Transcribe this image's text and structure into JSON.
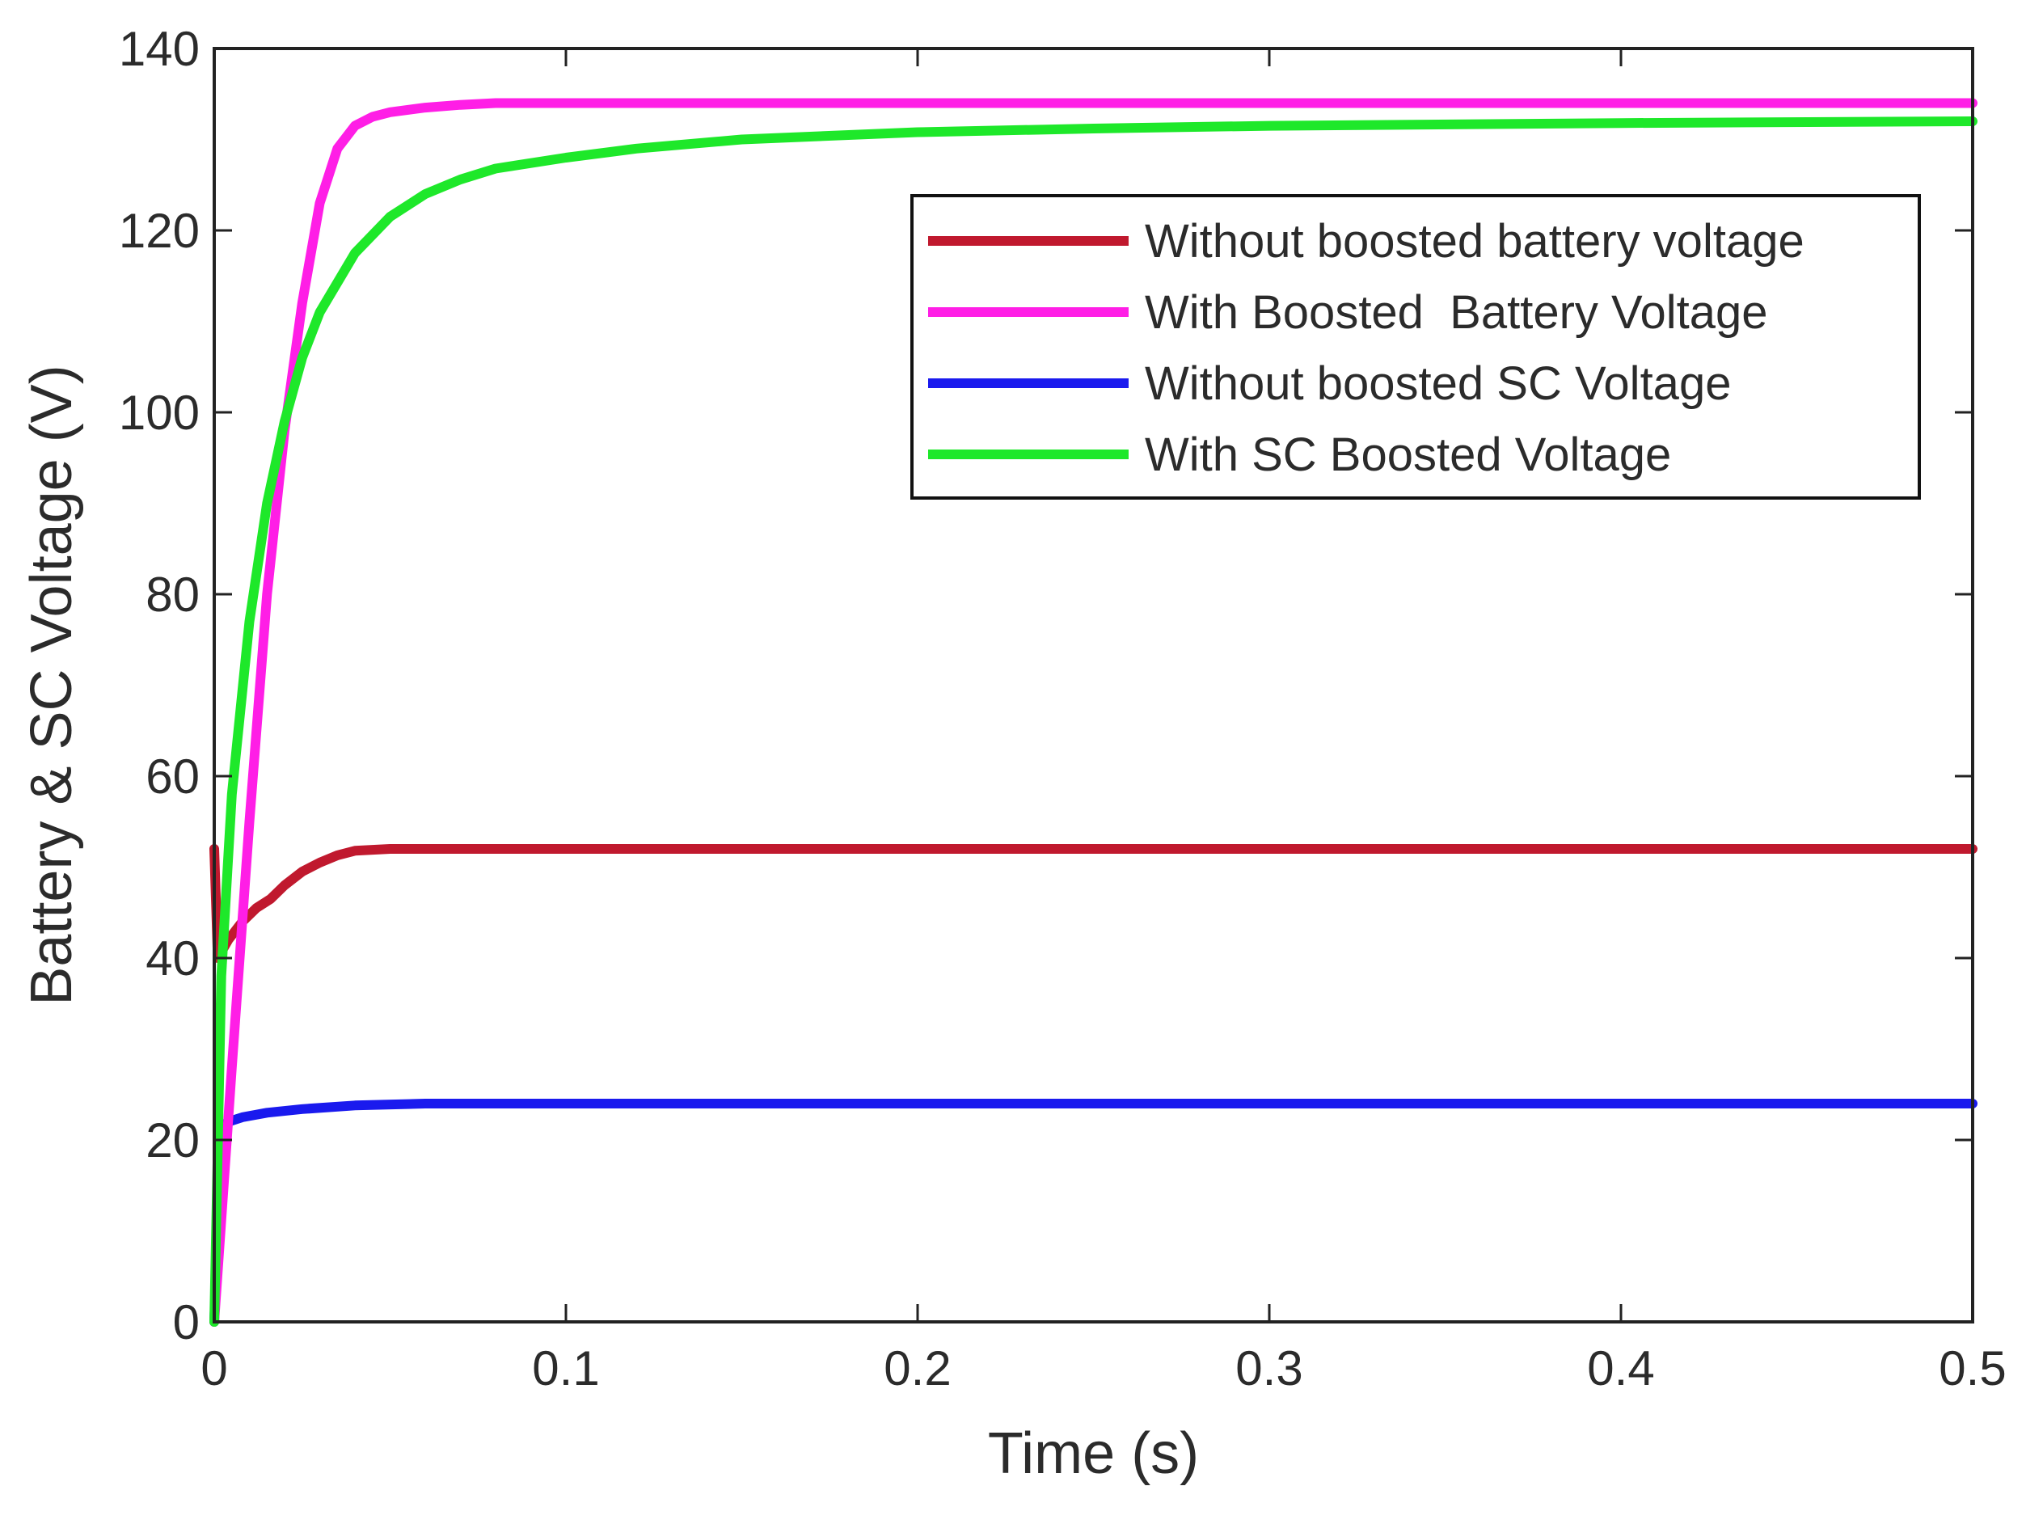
{
  "chart_data": {
    "type": "line",
    "xlabel": "Time (s)",
    "ylabel": "Battery & SC Voltage (V)",
    "xlim": [
      0,
      0.5
    ],
    "ylim": [
      0,
      140
    ],
    "xticks": [
      0,
      0.1,
      0.2,
      0.3,
      0.4,
      0.5
    ],
    "xtick_labels": [
      "0",
      "0.1",
      "0.2",
      "0.3",
      "0.4",
      "0.5"
    ],
    "yticks": [
      0,
      20,
      40,
      60,
      80,
      100,
      120,
      140
    ],
    "ytick_labels": [
      "0",
      "20",
      "40",
      "60",
      "80",
      "100",
      "120",
      "140"
    ],
    "grid": false,
    "legend_position": "top-right",
    "series": [
      {
        "name": "Without boosted battery voltage",
        "color": "#c0192e",
        "x": [
          0,
          0.001,
          0.004,
          0.008,
          0.012,
          0.016,
          0.02,
          0.025,
          0.03,
          0.035,
          0.04,
          0.05,
          0.06,
          0.1,
          0.2,
          0.3,
          0.4,
          0.5
        ],
        "y": [
          52,
          40,
          42,
          44,
          45.5,
          46.5,
          48,
          49.5,
          50.5,
          51.3,
          51.8,
          52,
          52,
          52,
          52,
          52,
          52,
          52
        ]
      },
      {
        "name": "With Boosted  Battery Voltage",
        "color": "#ff1ee6",
        "x": [
          0,
          0.005,
          0.01,
          0.015,
          0.02,
          0.025,
          0.03,
          0.035,
          0.04,
          0.045,
          0.05,
          0.06,
          0.07,
          0.08,
          0.1,
          0.2,
          0.3,
          0.4,
          0.5
        ],
        "y": [
          0,
          28,
          55,
          80,
          98,
          112,
          123,
          129,
          131.5,
          132.5,
          133,
          133.5,
          133.8,
          134,
          134,
          134,
          134,
          134,
          134
        ]
      },
      {
        "name": "Without boosted SC Voltage",
        "color": "#1a1aee",
        "x": [
          0,
          0.002,
          0.004,
          0.008,
          0.015,
          0.025,
          0.04,
          0.06,
          0.1,
          0.2,
          0.3,
          0.4,
          0.5
        ],
        "y": [
          0,
          21.5,
          22,
          22.5,
          23,
          23.4,
          23.8,
          24,
          24,
          24,
          24,
          24,
          24
        ]
      },
      {
        "name": "With SC Boosted Voltage",
        "color": "#1ee82a",
        "x": [
          0,
          0.002,
          0.005,
          0.01,
          0.015,
          0.02,
          0.025,
          0.03,
          0.04,
          0.05,
          0.06,
          0.07,
          0.08,
          0.1,
          0.12,
          0.15,
          0.2,
          0.25,
          0.3,
          0.4,
          0.5
        ],
        "y": [
          0,
          38,
          58,
          77,
          90,
          99,
          106,
          111,
          117.5,
          121.5,
          124,
          125.6,
          126.8,
          128,
          129,
          130,
          130.8,
          131.2,
          131.5,
          131.8,
          132
        ]
      }
    ]
  }
}
